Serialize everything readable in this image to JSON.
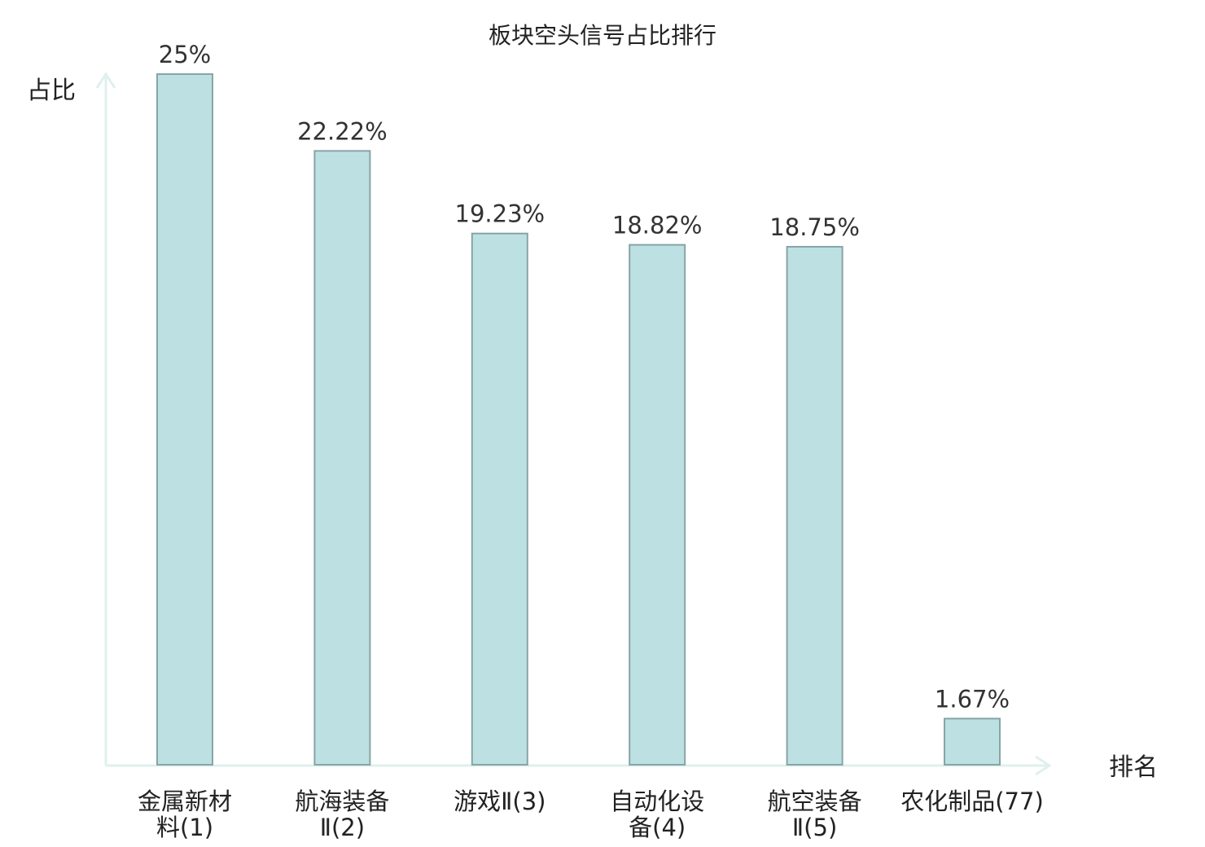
{
  "chart_data": {
    "type": "bar",
    "title": "板块空头信号占比排行",
    "ylabel": "占比",
    "xlabel": "排名",
    "categories": [
      [
        "金属新材",
        "料(1)"
      ],
      [
        "航海装备",
        "Ⅱ(2)"
      ],
      [
        "游戏Ⅱ(3)"
      ],
      [
        "自动化设",
        "备(4)"
      ],
      [
        "航空装备",
        "Ⅱ(5)"
      ],
      [
        "农化制品(77)"
      ]
    ],
    "values": [
      25,
      22.22,
      19.23,
      18.82,
      18.75,
      1.67
    ],
    "value_labels": [
      "25%",
      "22.22%",
      "19.23%",
      "18.82%",
      "18.75%",
      "1.67%"
    ],
    "highlight_index": 5,
    "ylim": [
      0,
      25
    ],
    "colors": {
      "bar_fill": "#bde1e3",
      "bar_stroke": "#88a4a6",
      "axis": "#dff0ee",
      "highlight_text": "#e0141b"
    },
    "grid": false,
    "legend": "none"
  }
}
